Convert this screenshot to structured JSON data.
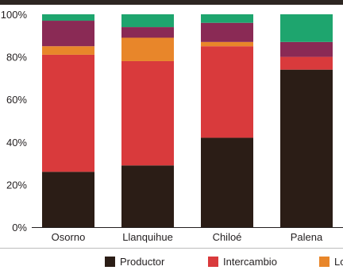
{
  "chart_data": {
    "type": "bar",
    "stacked": true,
    "categories": [
      "Osorno",
      "Llanquihue",
      "Chiloé",
      "Palena"
    ],
    "series": [
      {
        "name": "Productor",
        "color": "#2b1d16",
        "values": [
          26,
          29,
          42,
          74
        ]
      },
      {
        "name": "Intercambio",
        "color": "#d93a3c",
        "values": [
          55,
          49,
          43,
          6
        ]
      },
      {
        "name": "Lo",
        "color": "#e8862a",
        "values": [
          4,
          11,
          2,
          0
        ]
      },
      {
        "name": "",
        "color": "#8a2a55",
        "values": [
          12,
          5,
          9,
          7
        ]
      },
      {
        "name": "",
        "color": "#1ea56e",
        "values": [
          3,
          6,
          4,
          13
        ]
      }
    ],
    "y_ticks": [
      "0%",
      "20%",
      "40%",
      "60%",
      "80%",
      "100%"
    ],
    "ylim": [
      0,
      100
    ],
    "grid": false,
    "legend_position": "bottom",
    "xlabel": "",
    "ylabel": ""
  }
}
